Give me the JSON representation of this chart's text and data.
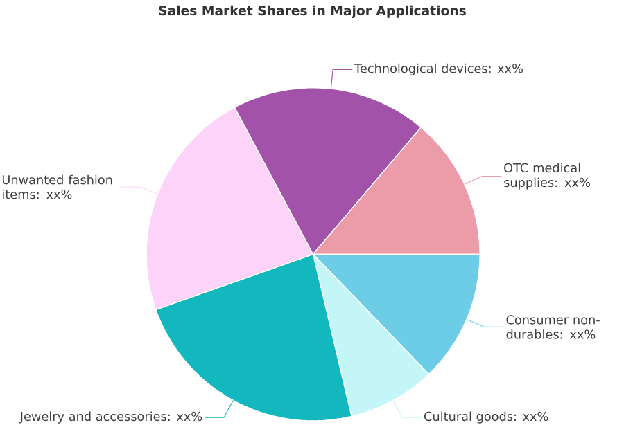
{
  "chart_data": {
    "type": "pie",
    "title": "Sales Market Shares in Major Applications",
    "categories": [
      "Consumer non-durables",
      "Cultural goods",
      "Jewelry and accessories",
      "Unwanted fashion items",
      "Technological devices",
      "OTC medical supplies"
    ],
    "values": [
      12.8,
      8.5,
      23.3,
      22.6,
      19.0,
      13.8
    ],
    "colors": [
      "#6dcde6",
      "#c4f5f7",
      "#13b8be",
      "#fdd3fa",
      "#a352a9",
      "#ec9ca8"
    ],
    "value_labels": [
      ": xx%",
      ": xx%",
      ": xx%",
      ": xx%",
      ": xx%",
      ": xx%"
    ]
  }
}
